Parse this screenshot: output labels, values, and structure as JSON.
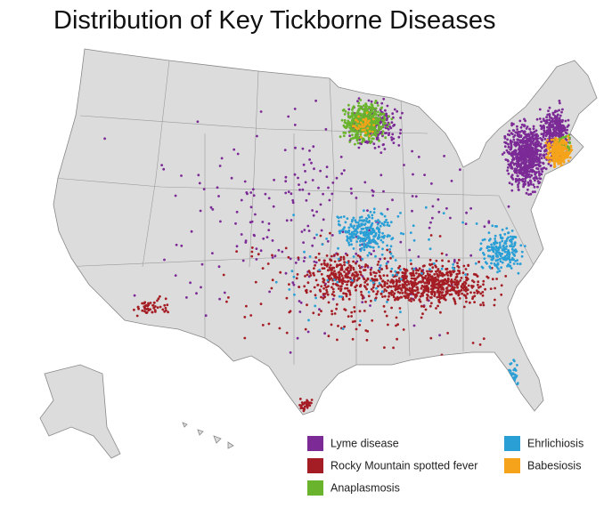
{
  "title": "Distribution of Key Tickborne Diseases",
  "legend": {
    "items": [
      {
        "label": "Lyme disease",
        "color": "#7b2a96"
      },
      {
        "label": "Rocky Mountain spotted fever",
        "color": "#a51d24"
      },
      {
        "label": "Anaplasmosis",
        "color": "#6ab42d"
      },
      {
        "label": "Ehrlichiosis",
        "color": "#2a9fd6"
      },
      {
        "label": "Babesiosis",
        "color": "#f5a31a"
      }
    ]
  }
}
